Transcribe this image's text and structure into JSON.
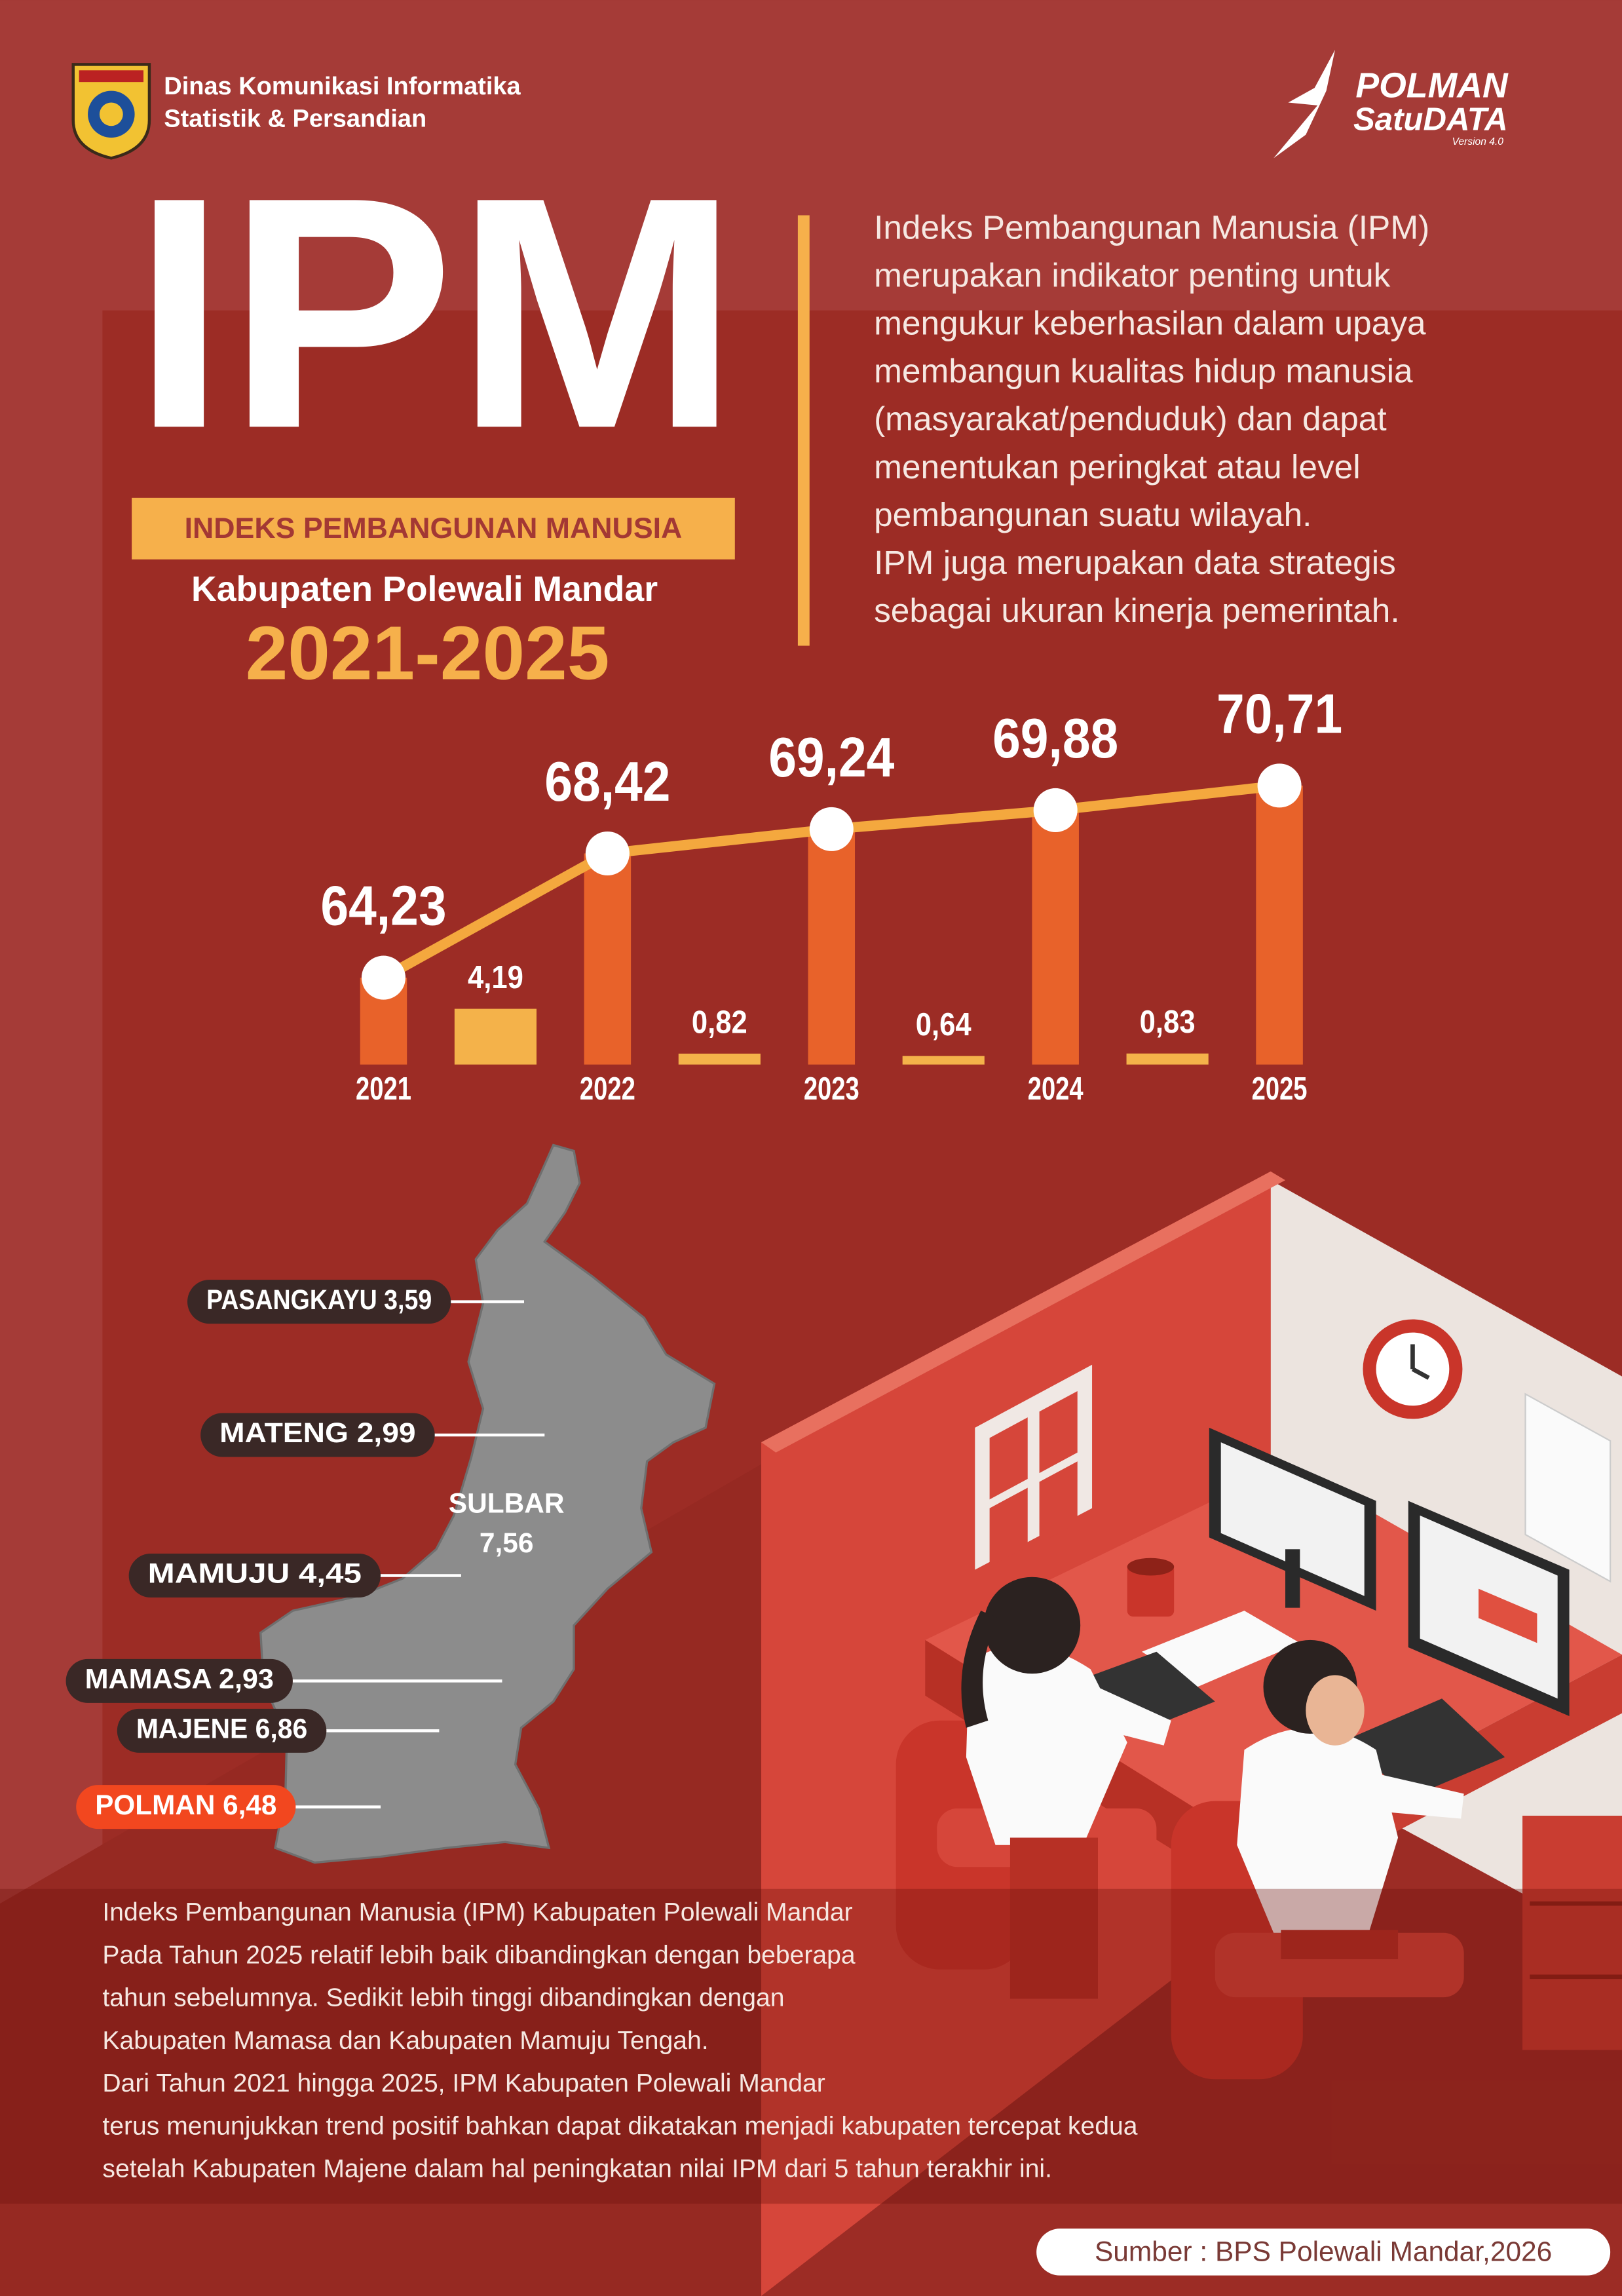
{
  "header": {
    "agency": [
      "Dinas Komunikasi Informatika",
      "Statistik & Persandian"
    ],
    "brand": {
      "name": "POLMAN",
      "sub": "SatuDATA",
      "version": "Version 4.0"
    }
  },
  "title": {
    "main": "IPM",
    "subtitle": "INDEKS PEMBANGUNAN MANUSIA",
    "region": "Kabupaten Polewali Mandar",
    "period": "2021-2025"
  },
  "description": [
    "Indeks Pembangunan Manusia (IPM)",
    "merupakan indikator penting untuk",
    "mengukur keberhasilan dalam upaya",
    "membangun kualitas hidup manusia",
    "(masyarakat/penduduk) dan dapat",
    "menentukan peringkat atau level",
    "pembangunan suatu wilayah.",
    "IPM juga merupakan data strategis",
    "sebagai ukuran kinerja pemerintah."
  ],
  "chart_data": {
    "type": "bar",
    "categories": [
      "2021",
      "2022",
      "2023",
      "2024",
      "2025"
    ],
    "values": [
      64.23,
      68.42,
      69.24,
      69.88,
      70.71
    ],
    "value_labels": [
      "64,23",
      "68,42",
      "69,24",
      "69,88",
      "70,71"
    ],
    "color": "#e8622a",
    "line_color": "#f4a83e",
    "ylim": [
      61.3,
      73.5
    ],
    "growth": {
      "values": [
        4.19,
        0.82,
        0.64,
        0.83
      ],
      "value_labels": [
        "4,19",
        "0,82",
        "0,64",
        "0,83"
      ],
      "color": "#f4b24a",
      "ylim": [
        0,
        27.2
      ]
    }
  },
  "map": {
    "region": [
      "SULBAR",
      "7,56"
    ],
    "labels": [
      "PASANGKAYU 3,59",
      "MATENG 2,99",
      "MAMUJU 4,45",
      "MAMASA 2,93",
      "MAJENE 6,86",
      "POLMAN 6,48"
    ]
  },
  "summary": [
    "Indeks Pembangunan Manusia (IPM) Kabupaten Polewali Mandar",
    "Pada Tahun 2025 relatif lebih baik dibandingkan dengan beberapa",
    "tahun sebelumnya. Sedikit lebih tinggi dibandingkan dengan",
    "Kabupaten Mamasa dan Kabupaten Mamuju Tengah.",
    "Dari Tahun 2021 hingga 2025, IPM Kabupaten Polewali Mandar",
    "terus menunjukkan trend positif bahkan dapat dikatakan menjadi kabupaten tercepat kedua",
    "setelah Kabupaten Majene dalam hal peningkatan nilai IPM dari 5 tahun terakhir ini."
  ],
  "source": "Sumber : BPS Polewali Mandar,2026"
}
